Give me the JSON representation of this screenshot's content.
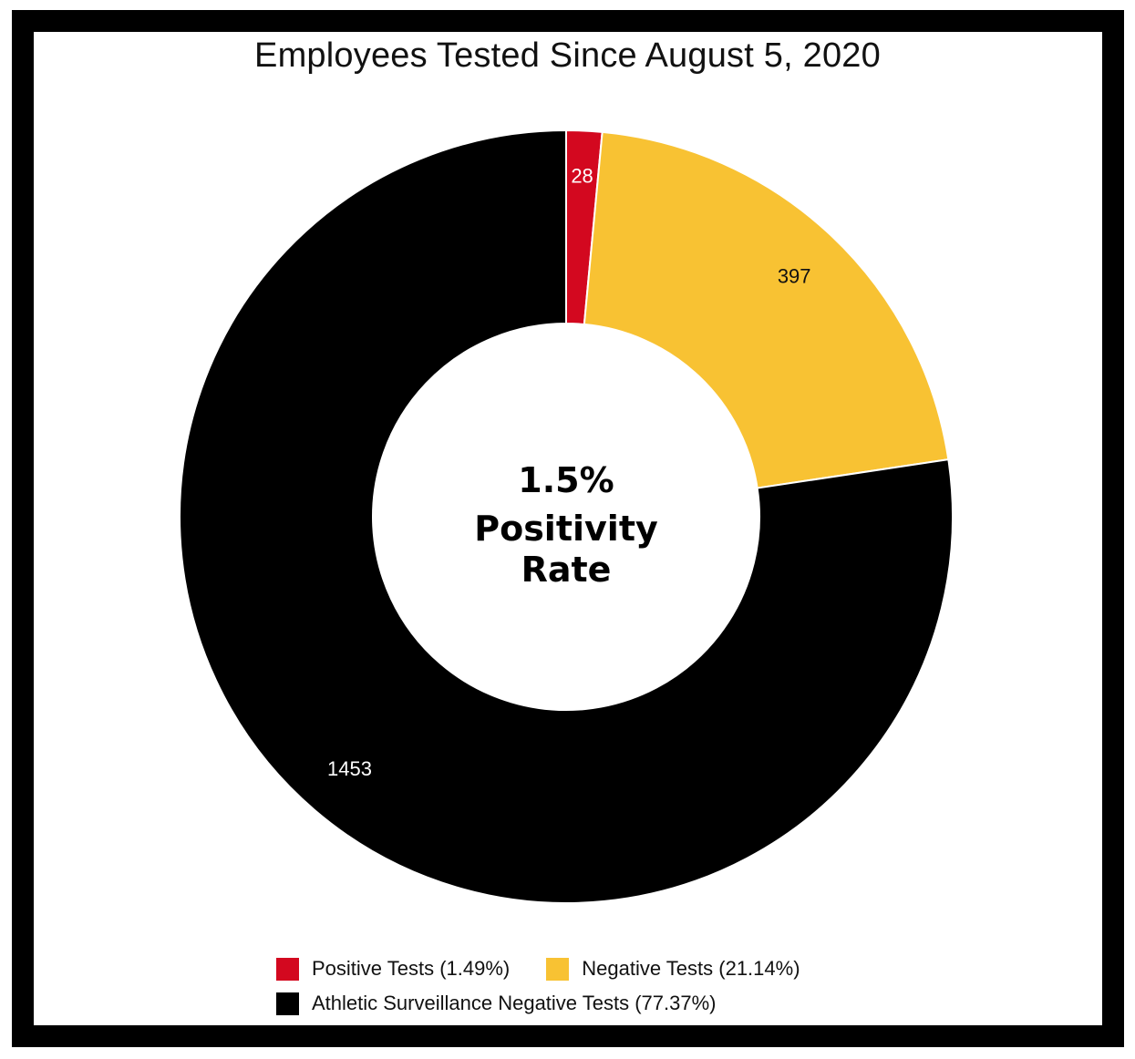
{
  "chart_data": {
    "type": "pie",
    "donut": true,
    "title": "Employees Tested Since August 5, 2020",
    "center_label": [
      "1.5%",
      "Positivity",
      "Rate"
    ],
    "series": [
      {
        "name": "Positive Tests (1.49%)",
        "value": 28,
        "label": "28",
        "color": "#d3081f",
        "label_color": "#ffffff"
      },
      {
        "name": "Negative Tests (21.14%)",
        "value": 397,
        "label": "397",
        "color": "#f8c233",
        "label_color": "#111111"
      },
      {
        "name": "Athletic Surveillance Negative Tests (77.37%)",
        "value": 1453,
        "label": "1453",
        "color": "#000000",
        "label_color": "#ffffff"
      }
    ],
    "legend_position": "bottom"
  }
}
